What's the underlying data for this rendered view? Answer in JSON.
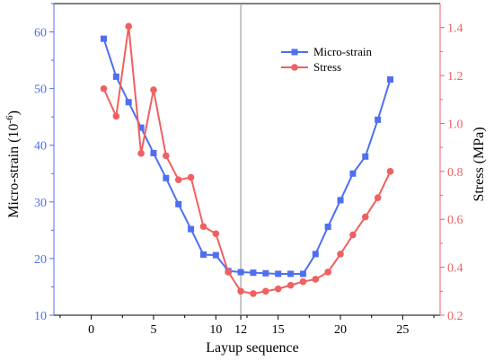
{
  "chart_data": {
    "type": "line",
    "x_axis": {
      "label": "Layup sequence",
      "range": [
        -3,
        28
      ],
      "ticks": [
        0,
        5,
        10,
        15,
        20,
        25
      ],
      "tick_labels": [
        "0",
        "5",
        "10",
        "15",
        "20",
        "25"
      ],
      "extra_tick": 12,
      "extra_tick_label": "12"
    },
    "y_left": {
      "label": "Micro-strain (10",
      "label_sup": "-6",
      "label_end": ")",
      "range": [
        10,
        65
      ],
      "ticks": [
        10,
        20,
        30,
        40,
        50,
        60
      ],
      "tick_labels": [
        "10",
        "20",
        "30",
        "40",
        "50",
        "60"
      ],
      "color": "#4f6ff0"
    },
    "y_right": {
      "label": "Stress (MPa)",
      "range": [
        0.2,
        1.5
      ],
      "ticks": [
        0.2,
        0.4,
        0.6,
        0.8,
        1.0,
        1.2,
        1.4
      ],
      "tick_labels": [
        "0.2",
        "0.4",
        "0.6",
        "0.8",
        "1.0",
        "1.2",
        "1.4"
      ],
      "color": "#f06060"
    },
    "vertical_line_x": 12,
    "series": [
      {
        "name": "Micro-strain",
        "axis": "left",
        "marker": "square",
        "color": "#4f6ff0",
        "x": [
          1,
          2,
          3,
          4,
          5,
          6,
          7,
          8,
          9,
          10,
          11,
          12,
          13,
          14,
          15,
          16,
          17,
          18,
          19,
          20,
          21,
          22,
          23,
          24
        ],
        "y": [
          58.8,
          52.1,
          47.6,
          43.1,
          38.6,
          34.2,
          29.6,
          25.2,
          20.7,
          20.6,
          17.8,
          17.6,
          17.5,
          17.4,
          17.3,
          17.3,
          17.3,
          20.8,
          25.6,
          30.3,
          35.0,
          38.0,
          44.5,
          51.6
        ]
      },
      {
        "name": "Stress",
        "axis": "right",
        "marker": "circle",
        "color": "#f06060",
        "x": [
          1,
          2,
          3,
          4,
          5,
          6,
          7,
          8,
          9,
          10,
          11,
          12,
          13,
          14,
          15,
          16,
          17,
          18,
          19,
          20,
          21,
          22,
          23,
          24
        ],
        "y": [
          1.145,
          1.03,
          1.405,
          0.875,
          1.14,
          0.865,
          0.765,
          0.775,
          0.57,
          0.54,
          0.38,
          0.3,
          0.29,
          0.3,
          0.31,
          0.325,
          0.34,
          0.35,
          0.38,
          0.455,
          0.535,
          0.61,
          0.69,
          0.8
        ]
      }
    ],
    "legend": {
      "position": "top-center",
      "entries": [
        "Micro-strain",
        "Stress"
      ]
    },
    "grid": false
  }
}
